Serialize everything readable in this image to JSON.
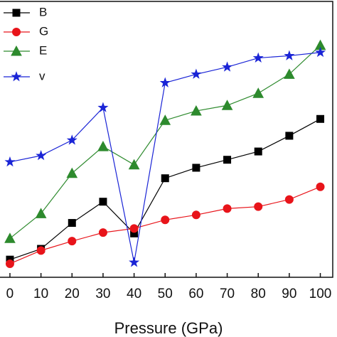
{
  "chart_data": {
    "type": "line",
    "x_label": "Pressure (GPa)",
    "x": [
      0,
      10,
      20,
      30,
      40,
      50,
      60,
      70,
      80,
      90,
      100
    ],
    "xlim": [
      -3.2,
      104
    ],
    "xticks": [
      0,
      10,
      20,
      30,
      40,
      50,
      60,
      70,
      80,
      90,
      100
    ],
    "ylim": [
      0,
      100
    ],
    "series": [
      {
        "name": "B",
        "color": "#000000",
        "marker": "square",
        "values": [
          6.4,
          10.3,
          19.7,
          27.4,
          15.9,
          35.9,
          39.7,
          42.6,
          45.6,
          51.3,
          57.4
        ]
      },
      {
        "name": "G",
        "color": "#e8141a",
        "marker": "circle",
        "values": [
          4.9,
          9.7,
          13.1,
          16.2,
          17.7,
          20.8,
          22.6,
          24.9,
          25.6,
          28.2,
          32.8
        ]
      },
      {
        "name": "E",
        "color": "#2d8a2d",
        "marker": "triangle",
        "values": [
          14.1,
          23.1,
          37.7,
          47.4,
          40.8,
          56.9,
          60.3,
          62.3,
          66.7,
          73.6,
          84.1
        ]
      },
      {
        "name": "v",
        "color": "#1a24d6",
        "marker": "star",
        "values": [
          41.8,
          44.1,
          49.7,
          61.5,
          5.4,
          70.5,
          73.6,
          76.2,
          79.5,
          80.3,
          81.5
        ]
      }
    ],
    "legend": "upper left"
  }
}
